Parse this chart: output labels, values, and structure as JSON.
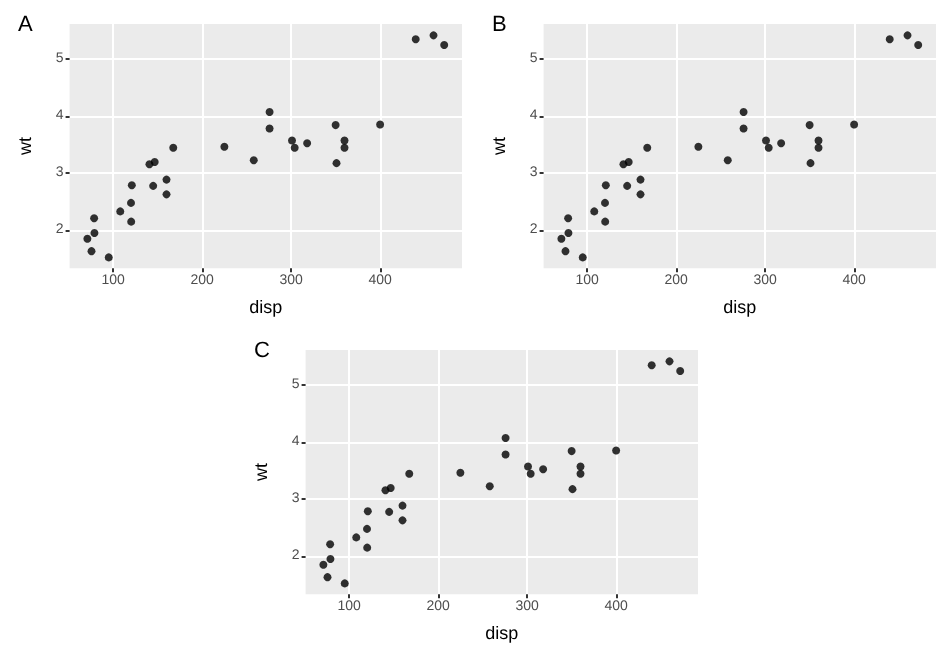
{
  "chart_data": [
    {
      "type": "scatter",
      "title": "A",
      "xlabel": "disp",
      "ylabel": "wt",
      "x": [
        160,
        160,
        108,
        258,
        360,
        225,
        360,
        146.7,
        140.8,
        null,
        167.6,
        275.8,
        null,
        275.8,
        472,
        460,
        440,
        78.7,
        75.7,
        71.1,
        120.1,
        318,
        304,
        350,
        400,
        79,
        120.3,
        95.1,
        351,
        145,
        301,
        121
      ],
      "values": [
        2.62,
        2.88,
        2.32,
        3.22,
        3.44,
        3.46,
        3.57,
        3.19,
        3.15,
        null,
        3.44,
        4.07,
        null,
        3.78,
        5.25,
        5.42,
        5.35,
        2.2,
        1.62,
        1.84,
        2.47,
        3.52,
        3.44,
        3.84,
        3.85,
        1.94,
        2.14,
        1.51,
        3.17,
        2.77,
        3.57,
        2.78
      ],
      "color": "#000000",
      "marker": "circle",
      "xlim": [
        51.1,
        492
      ],
      "xticks": [
        100,
        200,
        300,
        400
      ],
      "ylim": [
        1.32,
        5.62
      ],
      "yticks": [
        2,
        3,
        4,
        5
      ],
      "grid": true
    },
    {
      "type": "scatter",
      "title": "B",
      "xlabel": "disp",
      "ylabel": "wt",
      "x": [
        160,
        160,
        108,
        258,
        360,
        225,
        360,
        146.7,
        140.8,
        null,
        167.6,
        275.8,
        null,
        275.8,
        472,
        460,
        440,
        78.7,
        75.7,
        71.1,
        120.1,
        318,
        304,
        350,
        400,
        79,
        120.3,
        95.1,
        351,
        145,
        301,
        121
      ],
      "values": [
        2.62,
        2.88,
        2.32,
        3.22,
        3.44,
        3.46,
        3.57,
        3.19,
        3.15,
        null,
        3.44,
        4.07,
        null,
        3.78,
        5.25,
        5.42,
        5.35,
        2.2,
        1.62,
        1.84,
        2.47,
        3.52,
        3.44,
        3.84,
        3.85,
        1.94,
        2.14,
        1.51,
        3.17,
        2.77,
        3.57,
        2.78
      ],
      "color": "#000000",
      "marker": "circle",
      "xlim": [
        51.1,
        492
      ],
      "xticks": [
        100,
        200,
        300,
        400
      ],
      "ylim": [
        1.32,
        5.62
      ],
      "yticks": [
        2,
        3,
        4,
        5
      ],
      "grid": true
    },
    {
      "type": "scatter",
      "title": "C",
      "xlabel": "disp",
      "ylabel": "wt",
      "x": [
        160,
        160,
        108,
        258,
        360,
        225,
        360,
        146.7,
        140.8,
        null,
        167.6,
        275.8,
        null,
        275.8,
        472,
        460,
        440,
        78.7,
        75.7,
        71.1,
        120.1,
        318,
        304,
        350,
        400,
        79,
        120.3,
        95.1,
        351,
        145,
        301,
        121
      ],
      "values": [
        2.62,
        2.88,
        2.32,
        3.22,
        3.44,
        3.46,
        3.57,
        3.19,
        3.15,
        null,
        3.44,
        4.07,
        null,
        3.78,
        5.25,
        5.42,
        5.35,
        2.2,
        1.62,
        1.84,
        2.47,
        3.52,
        3.44,
        3.84,
        3.85,
        1.94,
        2.14,
        1.51,
        3.17,
        2.77,
        3.57,
        2.78
      ],
      "color": "#000000",
      "marker": "circle",
      "xlim": [
        51.1,
        492
      ],
      "xticks": [
        100,
        200,
        300,
        400
      ],
      "ylim": [
        1.32,
        5.62
      ],
      "yticks": [
        2,
        3,
        4,
        5
      ],
      "grid": true
    }
  ]
}
